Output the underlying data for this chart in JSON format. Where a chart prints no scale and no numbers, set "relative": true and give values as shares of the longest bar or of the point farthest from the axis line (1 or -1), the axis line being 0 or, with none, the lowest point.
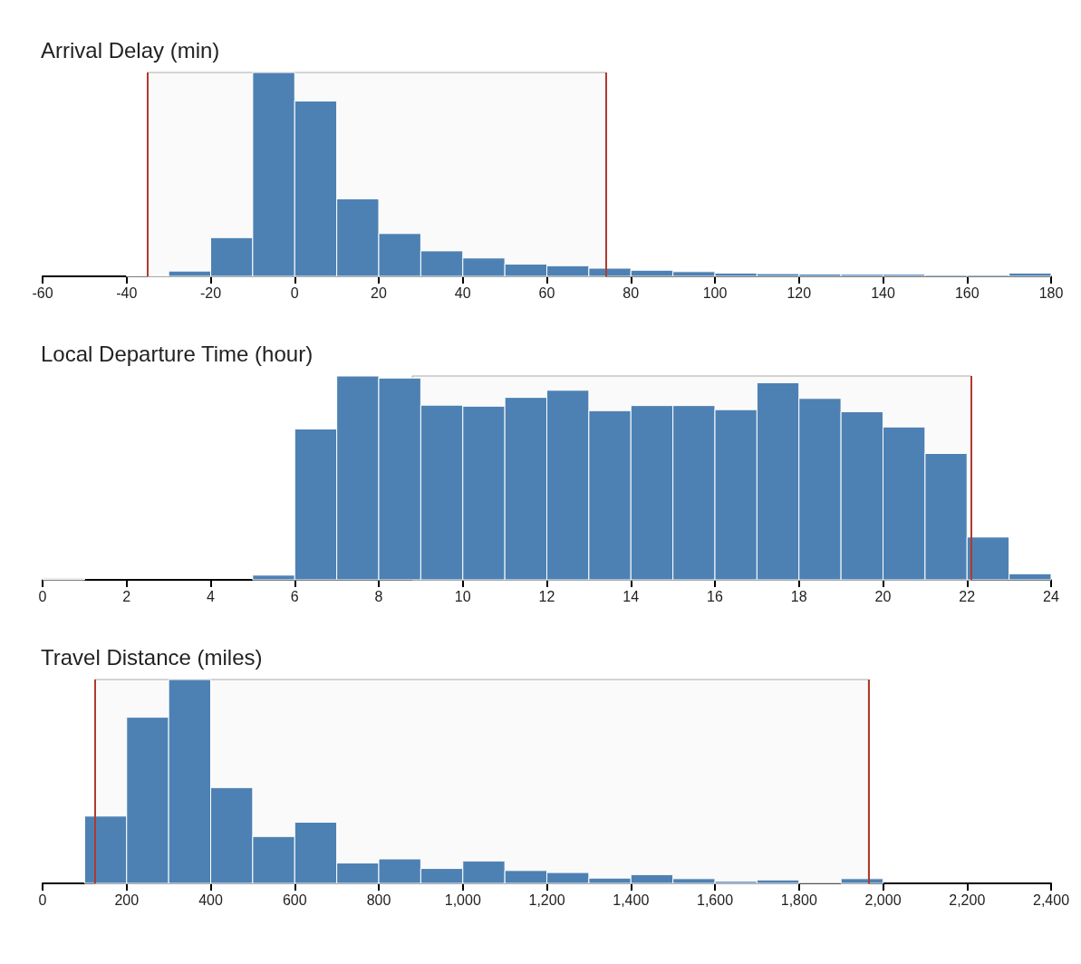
{
  "chart_data": [
    {
      "type": "bar",
      "title": "Arrival Delay (min)",
      "relative": true,
      "x": [
        -35,
        -25,
        -15,
        -5,
        5,
        15,
        25,
        35,
        45,
        55,
        65,
        75,
        85,
        95,
        105,
        115,
        125,
        135,
        145,
        155,
        165,
        175
      ],
      "values": [
        0.007,
        0.026,
        0.19,
        1,
        0.86,
        0.38,
        0.21,
        0.125,
        0.09,
        0.06,
        0.052,
        0.04,
        0.03,
        0.023,
        0.016,
        0.013,
        0.011,
        0.01,
        0.01,
        0.007,
        0.007,
        0.016
      ],
      "colors": [
        "#dfe3e8",
        "#4e81b3",
        "#4e81b3",
        "#4e81b3",
        "#4e81b3",
        "#4e81b3",
        "#4e81b3",
        "#4e81b3",
        "#4e81b3",
        "#4e81b3",
        "#4e81b3",
        "#4e81b3",
        "#4e81b3",
        "#4e81b3",
        "#4e81b3",
        "#4e81b3",
        "#4e81b3",
        "#4e81b3",
        "#4e81b3",
        "#4e81b3",
        "#4e81b3",
        "#4e81b3"
      ],
      "xlim": [
        -60,
        180
      ],
      "xticks": [
        -60,
        -40,
        -20,
        0,
        20,
        40,
        60,
        80,
        100,
        120,
        140,
        160,
        180
      ],
      "bands": [
        {
          "axis": "x",
          "from": -35,
          "to": 74,
          "color": "#fafafa"
        }
      ],
      "ref_lines": [
        {
          "axis": "x",
          "value": -35,
          "color": "#b03a2e"
        },
        {
          "axis": "x",
          "value": 74,
          "color": "#b03a2e"
        }
      ],
      "grid": false
    },
    {
      "type": "bar",
      "title": "Local Departure Time (hour)",
      "relative": true,
      "x": [
        0.5,
        5.5,
        6.5,
        7.5,
        8.5,
        9.5,
        10.5,
        11.5,
        12.5,
        13.5,
        14.5,
        15.5,
        16.5,
        17.5,
        18.5,
        19.5,
        20.5,
        21.5,
        22.5,
        23.5
      ],
      "values": [
        0.01,
        0.023,
        0.74,
        1,
        0.99,
        0.857,
        0.852,
        0.895,
        0.93,
        0.83,
        0.855,
        0.855,
        0.835,
        0.967,
        0.89,
        0.825,
        0.75,
        0.62,
        0.21,
        0.03
      ],
      "colors": [
        "#e3e3e3",
        "#4e81b3",
        "#4e81b3",
        "#4e81b3",
        "#4e81b3",
        "#4e81b3",
        "#4e81b3",
        "#4e81b3",
        "#4e81b3",
        "#4e81b3",
        "#4e81b3",
        "#4e81b3",
        "#4e81b3",
        "#4e81b3",
        "#4e81b3",
        "#4e81b3",
        "#4e81b3",
        "#4e81b3",
        "#4e81b3",
        "#4e81b3"
      ],
      "xlim": [
        0,
        24
      ],
      "xticks": [
        0,
        2,
        4,
        6,
        8,
        10,
        12,
        14,
        16,
        18,
        20,
        22,
        24
      ],
      "bands": [
        {
          "axis": "x",
          "from": 8.8,
          "to": 22.1,
          "color": "#fafafa"
        }
      ],
      "ref_lines": [
        {
          "axis": "x",
          "value": 22.1,
          "color": "#b03a2e"
        }
      ],
      "grid": false
    },
    {
      "type": "bar",
      "title": "Travel Distance (miles)",
      "relative": true,
      "x": [
        150,
        250,
        350,
        450,
        550,
        650,
        750,
        850,
        950,
        1050,
        1150,
        1250,
        1350,
        1450,
        1550,
        1650,
        1750,
        1950
      ],
      "values": [
        0.33,
        0.815,
        1,
        0.47,
        0.23,
        0.3,
        0.1,
        0.12,
        0.073,
        0.11,
        0.063,
        0.053,
        0.026,
        0.043,
        0.023,
        0.01,
        0.017,
        0.023
      ],
      "colors": [
        "#4e81b3",
        "#4e81b3",
        "#4e81b3",
        "#4e81b3",
        "#4e81b3",
        "#4e81b3",
        "#4e81b3",
        "#4e81b3",
        "#4e81b3",
        "#4e81b3",
        "#4e81b3",
        "#4e81b3",
        "#4e81b3",
        "#4e81b3",
        "#4e81b3",
        "#4e81b3",
        "#4e81b3",
        "#4e81b3"
      ],
      "xlim": [
        0,
        2400
      ],
      "xticks": [
        0,
        200,
        400,
        600,
        800,
        {
          "value": 1000,
          "label": "1,000"
        },
        {
          "value": 1200,
          "label": "1,200"
        },
        {
          "value": 1400,
          "label": "1,400"
        },
        {
          "value": 1600,
          "label": "1,600"
        },
        {
          "value": 1800,
          "label": "1,800"
        },
        {
          "value": 2000,
          "label": "2,000"
        },
        {
          "value": 2200,
          "label": "2,200"
        },
        {
          "value": 2400,
          "label": "2,400"
        }
      ],
      "bands": [
        {
          "axis": "x",
          "from": 125,
          "to": 1965,
          "color": "#fafafa"
        }
      ],
      "ref_lines": [
        {
          "axis": "x",
          "value": 125,
          "color": "#b03a2e"
        },
        {
          "axis": "x",
          "value": 1965,
          "color": "#b03a2e"
        }
      ],
      "grid": false
    }
  ]
}
